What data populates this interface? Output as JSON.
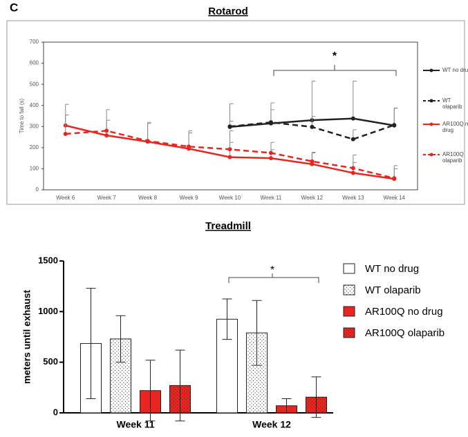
{
  "chart_data": [
    {
      "type": "line",
      "panel_label": "C",
      "title": "Rotarod",
      "ylabel": "Time to fall (s)",
      "categories": [
        "Week 6",
        "Week 7",
        "Week 8",
        "Week 9",
        "Week 10",
        "Week 11",
        "Week 12",
        "Week 13",
        "Week 14"
      ],
      "ylim": [
        0,
        700
      ],
      "yticks": [
        0,
        100,
        200,
        300,
        400,
        500,
        600,
        700
      ],
      "annotation": "*",
      "series": [
        {
          "name": "WT no drug",
          "color": "#222222",
          "dashed": false,
          "values": [
            null,
            null,
            null,
            null,
            298,
            315,
            330,
            338,
            305
          ],
          "errors": [
            null,
            null,
            null,
            null,
            110,
            97,
            185,
            177,
            83
          ]
        },
        {
          "name": "WT olaparib",
          "color": "#222222",
          "dashed": true,
          "values": [
            null,
            null,
            null,
            null,
            300,
            320,
            298,
            240,
            307
          ],
          "errors": [
            null,
            null,
            null,
            null,
            25,
            60,
            50,
            45,
            80
          ]
        },
        {
          "name": "AR100Q no drug",
          "color": "#e8251f",
          "dashed": false,
          "values": [
            305,
            258,
            228,
            195,
            155,
            150,
            122,
            80,
            52
          ],
          "errors": [
            100,
            122,
            92,
            85,
            125,
            75,
            53,
            85,
            63
          ]
        },
        {
          "name": "AR100Q olaparib",
          "color": "#e8251f",
          "dashed": true,
          "values": [
            265,
            280,
            232,
            205,
            192,
            175,
            135,
            103,
            55
          ],
          "errors": [
            90,
            50,
            83,
            65,
            33,
            15,
            43,
            27,
            45
          ]
        }
      ]
    },
    {
      "type": "bar",
      "title": "Treadmill",
      "ylabel": "meters until exhaust",
      "categories": [
        "Week 11",
        "Week 12"
      ],
      "ylim": [
        0,
        1500
      ],
      "yticks": [
        0,
        500,
        1000,
        1500
      ],
      "annotation": "*",
      "series": [
        {
          "name": "WT no drug",
          "color": "#ffffff",
          "pattern": false,
          "values": [
            685,
            925
          ],
          "errors": [
            545,
            200
          ]
        },
        {
          "name": "WT olaparib",
          "color": "#ffffff",
          "pattern": true,
          "values": [
            730,
            790
          ],
          "errors": [
            230,
            320
          ]
        },
        {
          "name": "AR100Q no drug",
          "color": "#e8251f",
          "pattern": false,
          "values": [
            220,
            70
          ],
          "errors": [
            300,
            70
          ]
        },
        {
          "name": "AR100Q olaparib",
          "color": "#e8251f",
          "pattern": true,
          "values": [
            270,
            155
          ],
          "errors": [
            350,
            200
          ]
        }
      ]
    }
  ]
}
